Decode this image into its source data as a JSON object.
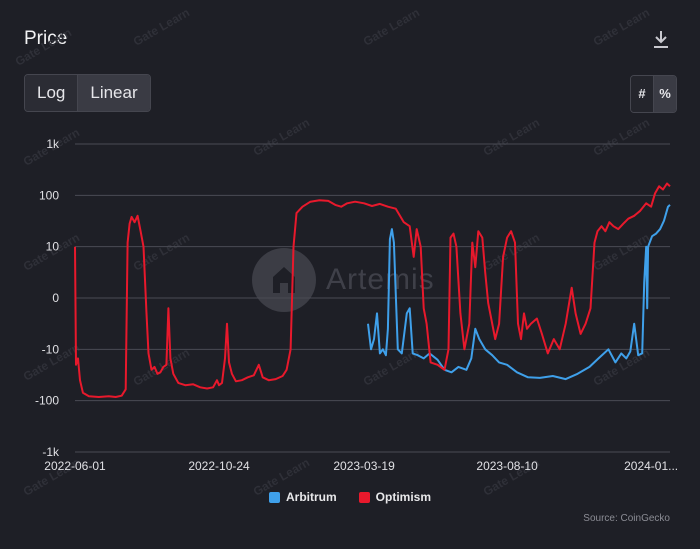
{
  "header": {
    "title": "Price"
  },
  "toolbar": {
    "download_icon": "download-icon",
    "scale_options": [
      "Log",
      "Linear"
    ],
    "selected_scale": "Linear",
    "unit_options": [
      "#",
      "%"
    ],
    "selected_unit": "%"
  },
  "watermark": {
    "text": "Gate Learn",
    "overlay": "Artemis"
  },
  "source": "Source: CoinGecko",
  "colors": {
    "arbitrum": "#3fa0ea",
    "optimism": "#e8192c",
    "background": "#1e1f26",
    "grid": "#4a4b54"
  },
  "chart_data": {
    "type": "line",
    "title": "Price",
    "xlabel": "",
    "ylabel": "",
    "y_scale": "symlog-percent",
    "y_ticks": [
      "1k",
      "100",
      "10",
      "0",
      "-10",
      "-100",
      "-1k"
    ],
    "x_ticks": [
      "2022-06-01",
      "2022-10-24",
      "2023-03-19",
      "2023-08-10",
      "2024-01..."
    ],
    "x_tick_dates": [
      "2022-06-01",
      "2022-10-24",
      "2023-03-19",
      "2023-08-10",
      "2024-01-02"
    ],
    "xlim": [
      "2022-06-01",
      "2024-01-21"
    ],
    "ylim": [
      -1000,
      1000
    ],
    "grid": true,
    "legend": "bottom-center",
    "series": [
      {
        "name": "Arbitrum",
        "points": [
          [
            "2023-03-23",
            -5
          ],
          [
            "2023-03-26",
            -10
          ],
          [
            "2023-03-29",
            -8
          ],
          [
            "2023-04-01",
            -3
          ],
          [
            "2023-04-04",
            -12
          ],
          [
            "2023-04-07",
            -10
          ],
          [
            "2023-04-10",
            -13
          ],
          [
            "2023-04-12",
            -6
          ],
          [
            "2023-04-14",
            14
          ],
          [
            "2023-04-16",
            22
          ],
          [
            "2023-04-18",
            12
          ],
          [
            "2023-04-22",
            -10
          ],
          [
            "2023-04-26",
            -12
          ],
          [
            "2023-05-01",
            -3
          ],
          [
            "2023-05-04",
            -2
          ],
          [
            "2023-05-07",
            -12
          ],
          [
            "2023-05-12",
            -13
          ],
          [
            "2023-05-18",
            -15
          ],
          [
            "2023-05-24",
            -12
          ],
          [
            "2023-06-01",
            -16
          ],
          [
            "2023-06-08",
            -25
          ],
          [
            "2023-06-15",
            -28
          ],
          [
            "2023-06-22",
            -22
          ],
          [
            "2023-06-30",
            -25
          ],
          [
            "2023-07-05",
            -15
          ],
          [
            "2023-07-09",
            -6
          ],
          [
            "2023-07-13",
            -8
          ],
          [
            "2023-07-19",
            -10
          ],
          [
            "2023-07-26",
            -13
          ],
          [
            "2023-08-02",
            -18
          ],
          [
            "2023-08-10",
            -20
          ],
          [
            "2023-08-20",
            -28
          ],
          [
            "2023-08-31",
            -35
          ],
          [
            "2023-09-12",
            -36
          ],
          [
            "2023-09-25",
            -33
          ],
          [
            "2023-10-08",
            -38
          ],
          [
            "2023-10-20",
            -30
          ],
          [
            "2023-11-01",
            -22
          ],
          [
            "2023-11-10",
            -15
          ],
          [
            "2023-11-20",
            -10
          ],
          [
            "2023-11-27",
            -18
          ],
          [
            "2023-12-03",
            -12
          ],
          [
            "2023-12-08",
            -15
          ],
          [
            "2023-12-12",
            -11
          ],
          [
            "2023-12-16",
            -5
          ],
          [
            "2023-12-20",
            -13
          ],
          [
            "2023-12-24",
            -12
          ],
          [
            "2023-12-26",
            3
          ],
          [
            "2023-12-28",
            10
          ],
          [
            "2023-12-29",
            -2
          ],
          [
            "2023-12-30",
            10
          ],
          [
            "2024-01-03",
            16
          ],
          [
            "2024-01-07",
            18
          ],
          [
            "2024-01-11",
            22
          ],
          [
            "2024-01-15",
            32
          ],
          [
            "2024-01-19",
            60
          ],
          [
            "2024-01-21",
            65
          ]
        ]
      },
      {
        "name": "Optimism",
        "points": [
          [
            "2022-06-01",
            10
          ],
          [
            "2022-06-02",
            -20
          ],
          [
            "2022-06-04",
            -15
          ],
          [
            "2022-06-06",
            -40
          ],
          [
            "2022-06-09",
            -70
          ],
          [
            "2022-06-15",
            -82
          ],
          [
            "2022-06-25",
            -85
          ],
          [
            "2022-07-05",
            -82
          ],
          [
            "2022-07-12",
            -85
          ],
          [
            "2022-07-18",
            -80
          ],
          [
            "2022-07-22",
            -60
          ],
          [
            "2022-07-24",
            12
          ],
          [
            "2022-07-26",
            28
          ],
          [
            "2022-07-28",
            38
          ],
          [
            "2022-07-31",
            30
          ],
          [
            "2022-08-03",
            40
          ],
          [
            "2022-08-06",
            20
          ],
          [
            "2022-08-09",
            10
          ],
          [
            "2022-08-12",
            -3
          ],
          [
            "2022-08-14",
            -12
          ],
          [
            "2022-08-17",
            -25
          ],
          [
            "2022-08-20",
            -22
          ],
          [
            "2022-08-23",
            -30
          ],
          [
            "2022-08-26",
            -28
          ],
          [
            "2022-08-29",
            -22
          ],
          [
            "2022-09-01",
            -20
          ],
          [
            "2022-09-03",
            -2
          ],
          [
            "2022-09-05",
            -15
          ],
          [
            "2022-09-08",
            -30
          ],
          [
            "2022-09-13",
            -45
          ],
          [
            "2022-09-20",
            -50
          ],
          [
            "2022-09-28",
            -48
          ],
          [
            "2022-10-05",
            -55
          ],
          [
            "2022-10-12",
            -58
          ],
          [
            "2022-10-18",
            -55
          ],
          [
            "2022-10-22",
            -40
          ],
          [
            "2022-10-24",
            -50
          ],
          [
            "2022-10-27",
            -45
          ],
          [
            "2022-10-30",
            -15
          ],
          [
            "2022-11-01",
            -5
          ],
          [
            "2022-11-03",
            -18
          ],
          [
            "2022-11-06",
            -30
          ],
          [
            "2022-11-10",
            -42
          ],
          [
            "2022-11-16",
            -40
          ],
          [
            "2022-11-22",
            -35
          ],
          [
            "2022-11-28",
            -32
          ],
          [
            "2022-12-03",
            -20
          ],
          [
            "2022-12-07",
            -35
          ],
          [
            "2022-12-13",
            -40
          ],
          [
            "2022-12-20",
            -38
          ],
          [
            "2022-12-27",
            -33
          ],
          [
            "2022-12-31",
            -25
          ],
          [
            "2023-01-04",
            -10
          ],
          [
            "2023-01-07",
            10
          ],
          [
            "2023-01-10",
            45
          ],
          [
            "2023-01-16",
            60
          ],
          [
            "2023-01-24",
            75
          ],
          [
            "2023-02-02",
            80
          ],
          [
            "2023-02-11",
            78
          ],
          [
            "2023-02-18",
            65
          ],
          [
            "2023-02-24",
            60
          ],
          [
            "2023-03-02",
            70
          ],
          [
            "2023-03-10",
            75
          ],
          [
            "2023-03-19",
            70
          ],
          [
            "2023-03-27",
            62
          ],
          [
            "2023-04-04",
            68
          ],
          [
            "2023-04-12",
            60
          ],
          [
            "2023-04-20",
            55
          ],
          [
            "2023-04-28",
            30
          ],
          [
            "2023-05-04",
            25
          ],
          [
            "2023-05-08",
            8
          ],
          [
            "2023-05-11",
            22
          ],
          [
            "2023-05-15",
            10
          ],
          [
            "2023-05-18",
            -2
          ],
          [
            "2023-05-21",
            -5
          ],
          [
            "2023-05-25",
            -18
          ],
          [
            "2023-06-01",
            -20
          ],
          [
            "2023-06-08",
            -25
          ],
          [
            "2023-06-12",
            -10
          ],
          [
            "2023-06-14",
            15
          ],
          [
            "2023-06-17",
            18
          ],
          [
            "2023-06-20",
            10
          ],
          [
            "2023-06-24",
            -3
          ],
          [
            "2023-06-28",
            -10
          ],
          [
            "2023-07-03",
            -5
          ],
          [
            "2023-07-06",
            12
          ],
          [
            "2023-07-09",
            6
          ],
          [
            "2023-07-12",
            20
          ],
          [
            "2023-07-16",
            15
          ],
          [
            "2023-07-19",
            5
          ],
          [
            "2023-07-22",
            -1
          ],
          [
            "2023-07-25",
            -4
          ],
          [
            "2023-07-29",
            -8
          ],
          [
            "2023-08-02",
            -5
          ],
          [
            "2023-08-06",
            8
          ],
          [
            "2023-08-10",
            15
          ],
          [
            "2023-08-14",
            20
          ],
          [
            "2023-08-18",
            12
          ],
          [
            "2023-08-21",
            -5
          ],
          [
            "2023-08-24",
            -8
          ],
          [
            "2023-08-27",
            -3
          ],
          [
            "2023-08-30",
            -6
          ],
          [
            "2023-09-03",
            -5
          ],
          [
            "2023-09-09",
            -4
          ],
          [
            "2023-09-14",
            -7
          ],
          [
            "2023-09-20",
            -12
          ],
          [
            "2023-09-26",
            -8
          ],
          [
            "2023-10-02",
            -10
          ],
          [
            "2023-10-08",
            -5
          ],
          [
            "2023-10-14",
            2
          ],
          [
            "2023-10-18",
            -3
          ],
          [
            "2023-10-23",
            -7
          ],
          [
            "2023-10-28",
            -5
          ],
          [
            "2023-11-02",
            -2
          ],
          [
            "2023-11-06",
            12
          ],
          [
            "2023-11-09",
            20
          ],
          [
            "2023-11-13",
            25
          ],
          [
            "2023-11-17",
            20
          ],
          [
            "2023-11-21",
            30
          ],
          [
            "2023-11-25",
            25
          ],
          [
            "2023-11-30",
            22
          ],
          [
            "2023-12-05",
            28
          ],
          [
            "2023-12-10",
            35
          ],
          [
            "2023-12-16",
            40
          ],
          [
            "2023-12-22",
            50
          ],
          [
            "2023-12-28",
            70
          ],
          [
            "2024-01-02",
            60
          ],
          [
            "2024-01-06",
            110
          ],
          [
            "2024-01-10",
            150
          ],
          [
            "2024-01-14",
            130
          ],
          [
            "2024-01-18",
            170
          ],
          [
            "2024-01-21",
            150
          ]
        ]
      }
    ]
  }
}
